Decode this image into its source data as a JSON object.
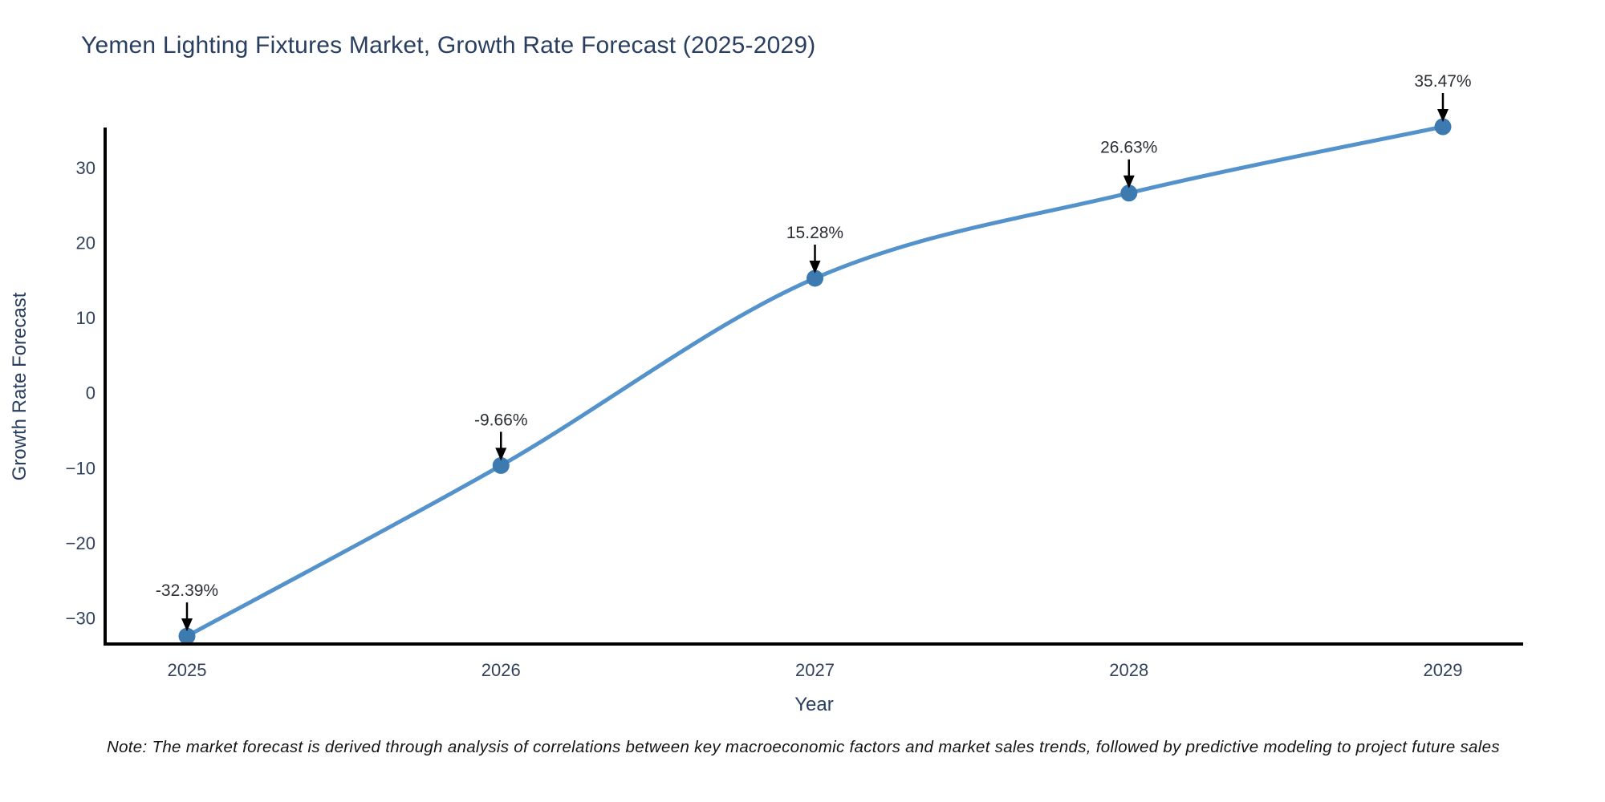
{
  "page": {
    "background": "#ffffff"
  },
  "chart_data": {
    "type": "line",
    "title": "Yemen Lighting Fixtures Market, Growth Rate Forecast (2025-2029)",
    "xlabel": "Year",
    "ylabel": "Growth Rate Forecast",
    "categories": [
      "2025",
      "2026",
      "2027",
      "2028",
      "2029"
    ],
    "values": [
      -32.39,
      -9.66,
      15.28,
      26.63,
      35.47
    ],
    "point_labels": [
      "-32.39%",
      "-9.66%",
      "15.28%",
      "26.63%",
      "35.47%"
    ],
    "ytick_labels": [
      "30",
      "20",
      "10",
      "0",
      "−10",
      "−20",
      "−30"
    ],
    "ytick_values": [
      30,
      20,
      10,
      0,
      -10,
      -20,
      -30
    ],
    "ylim": [
      -33.6,
      36.2
    ],
    "line_shape": "spline",
    "grid": false,
    "legend": "none",
    "annotation_arrows": "down",
    "note": "Note: The market forecast is derived through analysis of correlations between key macroeconomic factors and market sales trends, followed by predictive modeling to project future sales",
    "colors": {
      "line": "#5492cb",
      "marker": "#3c7ab0",
      "axis": "#000000",
      "title_text": "#2a3f5f",
      "tick_text": "#33425c",
      "axis_title_text": "#2a3f5f",
      "annotation_text": "#2b2f36",
      "note_text": "#141414"
    }
  }
}
